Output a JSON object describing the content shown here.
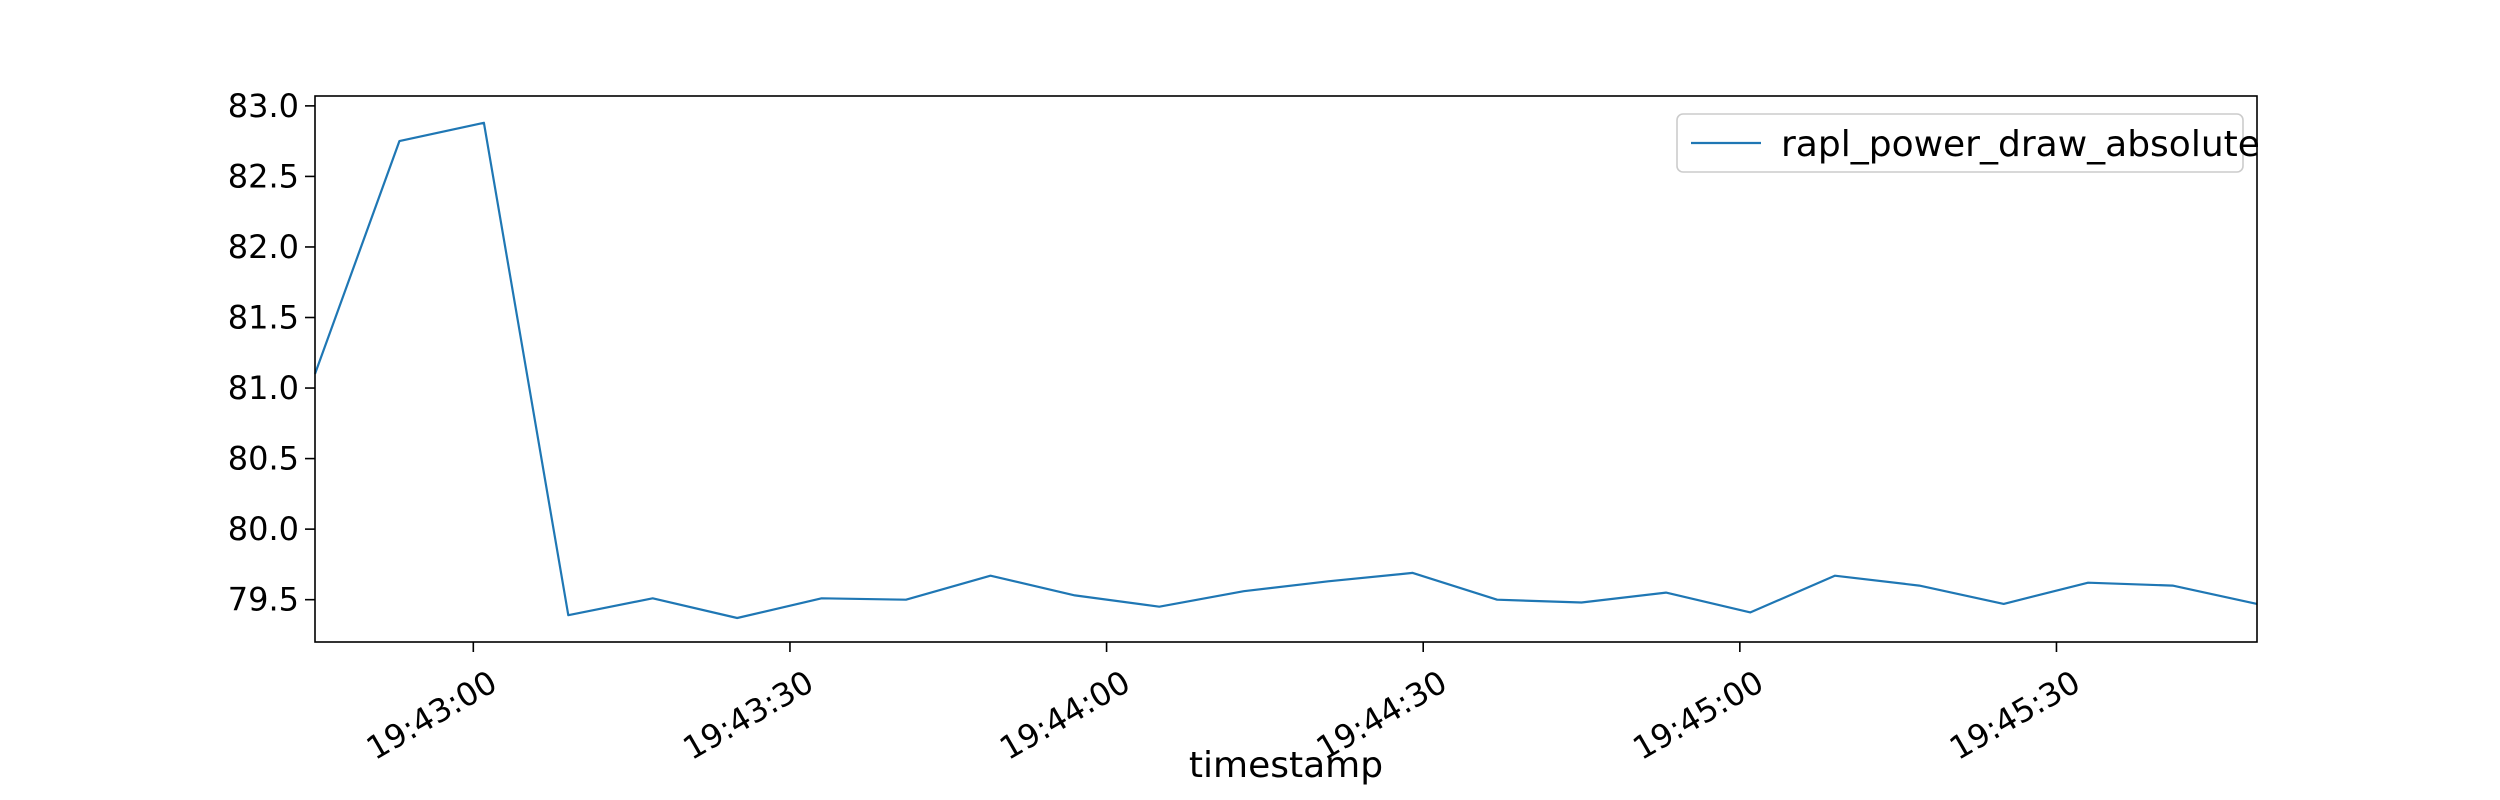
{
  "chart_data": {
    "type": "line",
    "title": "",
    "xlabel": "timestamp",
    "ylabel": "",
    "x_tick_labels": [
      "19:43:00",
      "19:43:30",
      "19:44:00",
      "19:44:30",
      "19:45:00",
      "19:45:30"
    ],
    "y_tick_labels": [
      "79.5",
      "80.0",
      "80.5",
      "81.0",
      "81.5",
      "82.0",
      "82.5",
      "83.0"
    ],
    "y_ticks": [
      79.5,
      80.0,
      80.5,
      81.0,
      81.5,
      82.0,
      82.5,
      83.0
    ],
    "xlim": [
      "19:42:45",
      "19:45:49"
    ],
    "ylim": [
      79.2,
      83.07
    ],
    "grid": false,
    "legend": {
      "position": "top-right"
    },
    "series": [
      {
        "name": "rapl_power_draw_absolute",
        "color": "#1f77b4",
        "x": [
          "19:42:45",
          "19:42:53",
          "19:43:01",
          "19:43:09",
          "19:43:17",
          "19:43:25",
          "19:43:33",
          "19:43:41",
          "19:43:49",
          "19:43:57",
          "19:44:05",
          "19:44:13",
          "19:44:21",
          "19:44:29",
          "19:44:37",
          "19:44:45",
          "19:44:53",
          "19:45:01",
          "19:45:09",
          "19:45:17",
          "19:45:25",
          "19:45:33",
          "19:45:41",
          "19:45:49"
        ],
        "y": [
          81.1,
          82.75,
          82.88,
          79.39,
          79.51,
          79.37,
          79.51,
          79.5,
          79.67,
          79.53,
          79.45,
          79.56,
          79.63,
          79.69,
          79.5,
          79.48,
          79.55,
          79.41,
          79.67,
          79.6,
          79.47,
          79.62,
          79.6,
          79.47
        ]
      }
    ]
  }
}
